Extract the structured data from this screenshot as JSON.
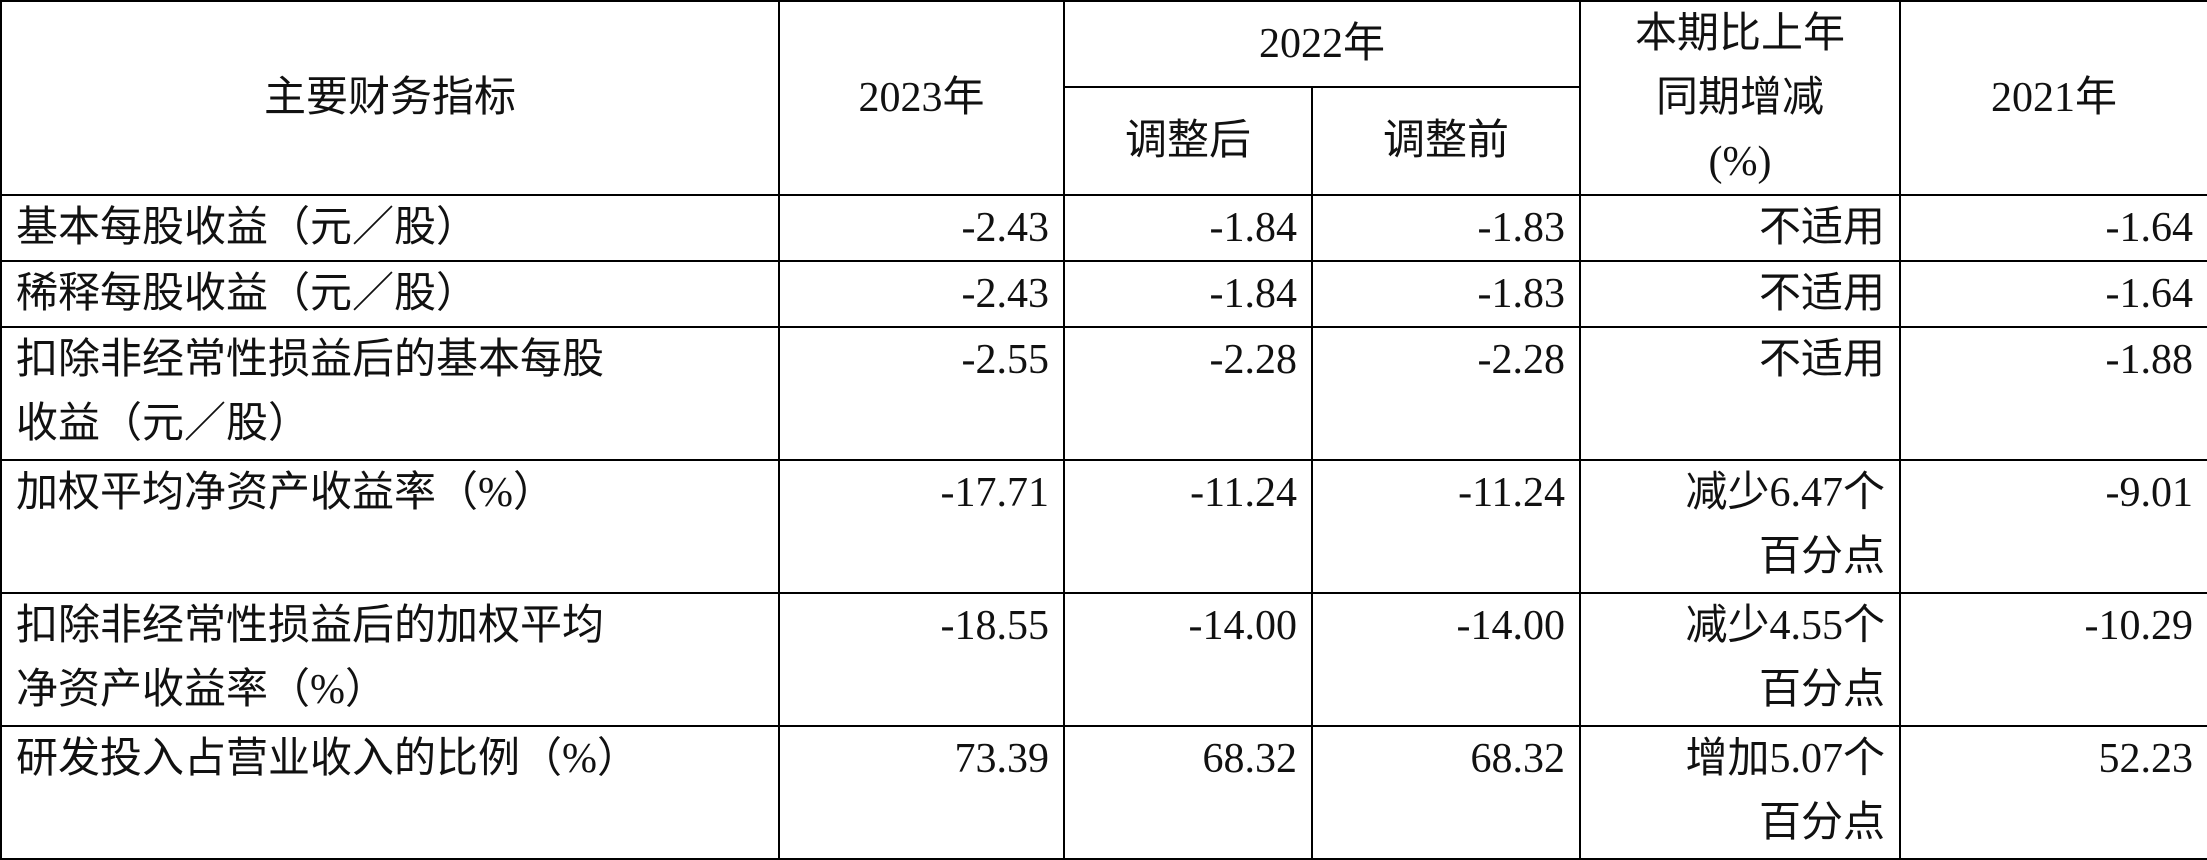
{
  "table": {
    "header": {
      "row1": [
        "主要财务指标",
        "2023年",
        "2022年",
        [
          "本期比上年",
          "同期增减",
          "(%)"
        ],
        "2021年"
      ],
      "row2": [
        "调整后",
        "调整前"
      ]
    },
    "rows": [
      [
        "基本每股收益（元／股）",
        "-2.43",
        "-1.84",
        "-1.83",
        "不适用",
        "-1.64"
      ],
      [
        "稀释每股收益（元／股）",
        "-2.43",
        "-1.84",
        "-1.83",
        "不适用",
        "-1.64"
      ],
      [
        [
          "扣除非经常性损益后的基本每股",
          "收益（元／股）"
        ],
        "-2.55",
        "-2.28",
        "-2.28",
        "不适用",
        "-1.88"
      ],
      [
        "加权平均净资产收益率（%）",
        "-17.71",
        "-11.24",
        "-11.24",
        [
          "减少6.47个",
          "百分点"
        ],
        "-9.01"
      ],
      [
        [
          "扣除非经常性损益后的加权平均",
          "净资产收益率（%）"
        ],
        "-18.55",
        "-14.00",
        "-14.00",
        [
          "减少4.55个",
          "百分点"
        ],
        "-10.29"
      ],
      [
        "研发投入占营业收入的比例（%）",
        "73.39",
        "68.32",
        "68.32",
        [
          "增加5.07个",
          "百分点"
        ],
        "52.23"
      ]
    ]
  }
}
